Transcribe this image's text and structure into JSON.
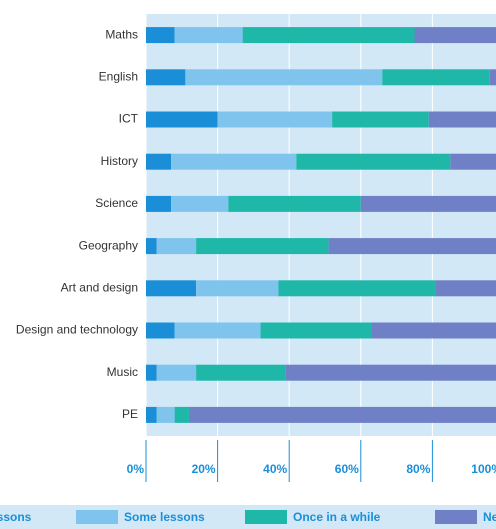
{
  "chart_data": {
    "type": "stacked-barh",
    "categories": [
      "Maths",
      "English",
      "ICT",
      "History",
      "Science",
      "Geography",
      "Art and design",
      "Design and technology",
      "Music",
      "PE"
    ],
    "series": [
      {
        "name": "All lessons",
        "color": "#1a8fd8",
        "values": [
          8,
          11,
          20,
          7,
          7,
          3,
          14,
          8,
          3,
          3
        ]
      },
      {
        "name": "Some lessons",
        "color": "#7fc4ec",
        "values": [
          19,
          55,
          32,
          35,
          16,
          11,
          23,
          24,
          11,
          5
        ]
      },
      {
        "name": "Once in a while",
        "color": "#1fb8a8",
        "values": [
          48,
          30,
          27,
          43,
          37,
          37,
          44,
          31,
          25,
          4
        ]
      },
      {
        "name": "Never",
        "color": "#6f80c6",
        "values": [
          25,
          4,
          21,
          15,
          40,
          49,
          19,
          37,
          61,
          88
        ]
      }
    ],
    "xlim": [
      0,
      100
    ],
    "xticks": [
      {
        "value": 0,
        "label": "0%"
      },
      {
        "value": 20,
        "label": "20%"
      },
      {
        "value": 40,
        "label": "40%"
      },
      {
        "value": 60,
        "label": "60%"
      },
      {
        "value": 80,
        "label": "80%"
      },
      {
        "value": 100,
        "label": "100%"
      }
    ],
    "grid": true
  }
}
